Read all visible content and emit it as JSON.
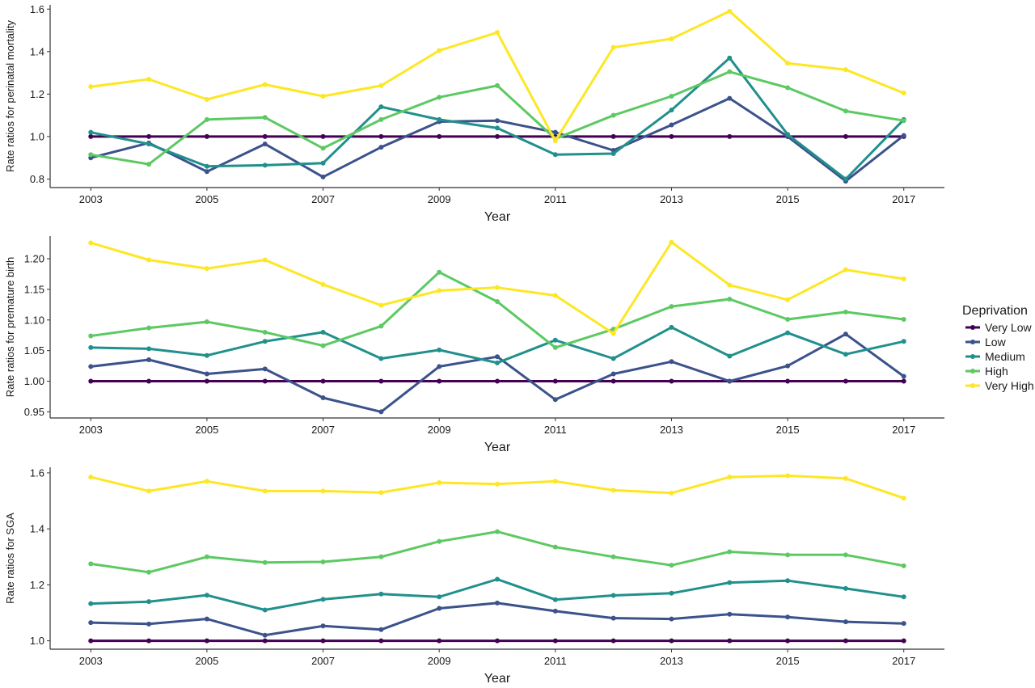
{
  "legend": {
    "title": "Deprivation",
    "position": "right"
  },
  "series_info": [
    {
      "name": "Very Low",
      "color": "#440154"
    },
    {
      "name": "Low",
      "color": "#3b528b"
    },
    {
      "name": "Medium",
      "color": "#21908d"
    },
    {
      "name": "High",
      "color": "#5dc963"
    },
    {
      "name": "Very High",
      "color": "#fde725"
    }
  ],
  "chart_data": [
    {
      "type": "line",
      "xlabel": "Year",
      "ylabel": "Rate ratios for perinatal mortality",
      "x": [
        2003,
        2004,
        2005,
        2006,
        2007,
        2008,
        2009,
        2010,
        2011,
        2012,
        2013,
        2014,
        2015,
        2016,
        2017
      ],
      "xticks": [
        2003,
        2005,
        2007,
        2009,
        2011,
        2013,
        2015,
        2017
      ],
      "yticks": [
        0.8,
        1.0,
        1.2,
        1.4,
        1.6
      ],
      "ytick_labels": [
        "0.8",
        "1.0",
        "1.2",
        "1.4",
        "1.6"
      ],
      "ylim": [
        0.76,
        1.62
      ],
      "xlim": [
        2002.3,
        2017.7
      ],
      "grid": false,
      "series": [
        {
          "name": "Very Low",
          "values": [
            1.0,
            1.0,
            1.0,
            1.0,
            1.0,
            1.0,
            1.0,
            1.0,
            1.0,
            1.0,
            1.0,
            1.0,
            1.0,
            1.0,
            1.0
          ]
        },
        {
          "name": "Low",
          "values": [
            0.9,
            0.97,
            0.835,
            0.965,
            0.81,
            0.95,
            1.07,
            1.075,
            1.02,
            0.935,
            1.055,
            1.18,
            1.0,
            0.79,
            1.005
          ]
        },
        {
          "name": "Medium",
          "values": [
            1.02,
            0.965,
            0.86,
            0.865,
            0.875,
            1.14,
            1.08,
            1.04,
            0.915,
            0.92,
            1.125,
            1.37,
            1.01,
            0.8,
            1.08
          ]
        },
        {
          "name": "High",
          "values": [
            0.915,
            0.87,
            1.08,
            1.09,
            0.945,
            1.08,
            1.185,
            1.24,
            0.99,
            1.1,
            1.19,
            1.305,
            1.23,
            1.12,
            1.075
          ]
        },
        {
          "name": "Very High",
          "values": [
            1.235,
            1.27,
            1.175,
            1.245,
            1.19,
            1.24,
            1.405,
            1.49,
            0.98,
            1.42,
            1.46,
            1.59,
            1.345,
            1.315,
            1.205
          ]
        }
      ]
    },
    {
      "type": "line",
      "xlabel": "Year",
      "ylabel": "Rate ratios for premature birth",
      "x": [
        2003,
        2004,
        2005,
        2006,
        2007,
        2008,
        2009,
        2010,
        2011,
        2012,
        2013,
        2014,
        2015,
        2016,
        2017
      ],
      "xticks": [
        2003,
        2005,
        2007,
        2009,
        2011,
        2013,
        2015,
        2017
      ],
      "yticks": [
        0.95,
        1.0,
        1.05,
        1.1,
        1.15,
        1.2
      ],
      "ytick_labels": [
        "0.95",
        "1.00",
        "1.05",
        "1.10",
        "1.15",
        "1.20"
      ],
      "ylim": [
        0.94,
        1.237
      ],
      "xlim": [
        2002.3,
        2017.7
      ],
      "grid": false,
      "series": [
        {
          "name": "Very Low",
          "values": [
            1.0,
            1.0,
            1.0,
            1.0,
            1.0,
            1.0,
            1.0,
            1.0,
            1.0,
            1.0,
            1.0,
            1.0,
            1.0,
            1.0,
            1.0
          ]
        },
        {
          "name": "Low",
          "values": [
            1.024,
            1.035,
            1.012,
            1.02,
            0.973,
            0.95,
            1.024,
            1.04,
            0.97,
            1.012,
            1.032,
            1.0,
            1.025,
            1.077,
            1.008
          ]
        },
        {
          "name": "Medium",
          "values": [
            1.055,
            1.053,
            1.042,
            1.065,
            1.08,
            1.037,
            1.051,
            1.03,
            1.067,
            1.037,
            1.088,
            1.041,
            1.079,
            1.044,
            1.065
          ]
        },
        {
          "name": "High",
          "values": [
            1.074,
            1.087,
            1.097,
            1.08,
            1.058,
            1.09,
            1.178,
            1.13,
            1.055,
            1.085,
            1.122,
            1.134,
            1.101,
            1.113,
            1.101
          ]
        },
        {
          "name": "Very High",
          "values": [
            1.226,
            1.198,
            1.184,
            1.198,
            1.158,
            1.124,
            1.148,
            1.153,
            1.14,
            1.078,
            1.227,
            1.157,
            1.133,
            1.182,
            1.167
          ]
        }
      ]
    },
    {
      "type": "line",
      "xlabel": "Year",
      "ylabel": "Rate ratios for SGA",
      "x": [
        2003,
        2004,
        2005,
        2006,
        2007,
        2008,
        2009,
        2010,
        2011,
        2012,
        2013,
        2014,
        2015,
        2016,
        2017
      ],
      "xticks": [
        2003,
        2005,
        2007,
        2009,
        2011,
        2013,
        2015,
        2017
      ],
      "yticks": [
        1.0,
        1.2,
        1.4,
        1.6
      ],
      "ytick_labels": [
        "1.0",
        "1.2",
        "1.4",
        "1.6"
      ],
      "ylim": [
        0.97,
        1.62
      ],
      "xlim": [
        2002.3,
        2017.7
      ],
      "grid": false,
      "series": [
        {
          "name": "Very Low",
          "values": [
            1.0,
            1.0,
            1.0,
            1.0,
            1.0,
            1.0,
            1.0,
            1.0,
            1.0,
            1.0,
            1.0,
            1.0,
            1.0,
            1.0,
            1.0
          ]
        },
        {
          "name": "Low",
          "values": [
            1.065,
            1.06,
            1.078,
            1.02,
            1.053,
            1.04,
            1.116,
            1.135,
            1.106,
            1.081,
            1.078,
            1.095,
            1.085,
            1.068,
            1.062
          ]
        },
        {
          "name": "Medium",
          "values": [
            1.133,
            1.14,
            1.163,
            1.11,
            1.148,
            1.167,
            1.157,
            1.22,
            1.147,
            1.162,
            1.17,
            1.208,
            1.215,
            1.187,
            1.157
          ]
        },
        {
          "name": "High",
          "values": [
            1.275,
            1.245,
            1.3,
            1.28,
            1.282,
            1.3,
            1.355,
            1.39,
            1.335,
            1.3,
            1.27,
            1.318,
            1.307,
            1.307,
            1.268
          ]
        },
        {
          "name": "Very High",
          "values": [
            1.585,
            1.535,
            1.57,
            1.535,
            1.535,
            1.53,
            1.565,
            1.56,
            1.57,
            1.538,
            1.528,
            1.585,
            1.59,
            1.58,
            1.51
          ]
        }
      ]
    }
  ]
}
